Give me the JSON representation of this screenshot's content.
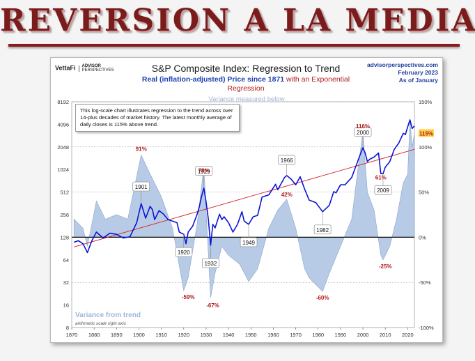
{
  "banner": {
    "title": "REVERSION A LA MEDIA"
  },
  "brand": {
    "vettafi": "VettaFi",
    "advisor": "ADVISOR",
    "perspectives": "PERSPECTIVES"
  },
  "header": {
    "title": "S&P Composite Index: Regression to Trend",
    "subtitle_blue": "Real (inflation-adjusted) Price since 1871",
    "subtitle_red": "with an Exponential Regression",
    "variance_note": "Variance measured below"
  },
  "source": {
    "site": "advisorperspectives.com",
    "date": "February 2023",
    "basis": "As of January"
  },
  "explain_box": "This log-scale chart illustrates regression to the trend across over 14-plus decades of market history. The latest monthly average of daily closes is 115% above trend.",
  "variance_label": "Variance from trend",
  "variance_sub": "arithmetic scale right axis",
  "colors": {
    "price": "#0a14d6",
    "trend": "#d22020",
    "variance_fill": "#b8cbe6",
    "variance_stroke": "#8aa3c8",
    "callout_red": "#b31a1a"
  },
  "chart_data": {
    "type": "line",
    "x_axis": {
      "range": [
        1870,
        2023
      ],
      "ticks": [
        1870,
        1880,
        1890,
        1900,
        1910,
        1920,
        1930,
        1940,
        1950,
        1960,
        1970,
        1980,
        1990,
        2000,
        2010,
        2020
      ]
    },
    "y_axis_left": {
      "scale": "log2",
      "range": [
        8,
        8192
      ],
      "ticks": [
        8,
        16,
        32,
        64,
        128,
        256,
        512,
        1024,
        2048,
        4096,
        8192
      ]
    },
    "y_axis_right": {
      "scale": "linear",
      "range": [
        -100,
        150
      ],
      "ticks": [
        "150%",
        "100%",
        "50%",
        "0%",
        "-50%",
        "-100%"
      ]
    },
    "trend": {
      "name": "Exponential Regression",
      "points": [
        [
          1871,
          95
        ],
        [
          2023,
          1900
        ]
      ]
    },
    "series": [
      {
        "name": "Real S&P Composite",
        "x": [
          1871,
          1873,
          1875,
          1877,
          1879,
          1881,
          1884,
          1887,
          1890,
          1893,
          1896,
          1899,
          1901,
          1903,
          1905,
          1906,
          1907,
          1909,
          1911,
          1913,
          1915,
          1917,
          1918,
          1920,
          1921,
          1922,
          1924,
          1926,
          1927,
          1928,
          1929,
          1930,
          1931,
          1932,
          1933,
          1934,
          1935,
          1936,
          1937,
          1938,
          1940,
          1942,
          1944,
          1946,
          1947,
          1949,
          1951,
          1953,
          1955,
          1958,
          1961,
          1962,
          1965,
          1966,
          1968,
          1970,
          1972,
          1974,
          1976,
          1979,
          1982,
          1985,
          1987,
          1988,
          1990,
          1992,
          1995,
          1998,
          2000,
          2001,
          2002,
          2003,
          2005,
          2007,
          2008,
          2009,
          2010,
          2012,
          2014,
          2016,
          2018,
          2019,
          2020,
          2021,
          2022,
          2023
        ],
        "values": [
          110,
          115,
          105,
          80,
          115,
          150,
          125,
          145,
          140,
          125,
          130,
          200,
          360,
          230,
          330,
          300,
          220,
          290,
          260,
          220,
          210,
          200,
          150,
          140,
          105,
          150,
          180,
          260,
          330,
          450,
          580,
          380,
          220,
          100,
          190,
          170,
          210,
          260,
          220,
          240,
          200,
          150,
          190,
          280,
          210,
          190,
          240,
          250,
          440,
          470,
          650,
          550,
          800,
          850,
          760,
          640,
          820,
          560,
          400,
          370,
          280,
          340,
          520,
          500,
          640,
          640,
          800,
          1400,
          2000,
          1700,
          1300,
          1400,
          1500,
          1700,
          900,
          900,
          1100,
          1300,
          1900,
          2300,
          3100,
          3000,
          3800,
          4700,
          3600,
          3900
        ]
      },
      {
        "name": "Variance from trend",
        "x": [
          1871,
          1875,
          1877,
          1881,
          1885,
          1890,
          1895,
          1901,
          1905,
          1910,
          1915,
          1920,
          1922,
          1926,
          1929,
          1930,
          1932,
          1934,
          1937,
          1940,
          1945,
          1949,
          1953,
          1958,
          1962,
          1966,
          1970,
          1974,
          1976,
          1978,
          1982,
          1985,
          1990,
          1995,
          1998,
          2000,
          2002,
          2005,
          2008,
          2009,
          2012,
          2015,
          2018,
          2020,
          2021,
          2022,
          2023
        ],
        "values": [
          20,
          10,
          -10,
          40,
          20,
          25,
          20,
          91,
          70,
          45,
          10,
          -59,
          -45,
          15,
          78,
          30,
          -67,
          -40,
          -10,
          -20,
          -30,
          -49,
          -35,
          10,
          30,
          42,
          10,
          -35,
          -45,
          -50,
          -60,
          -40,
          -10,
          20,
          80,
          116,
          50,
          30,
          -20,
          -25,
          -10,
          20,
          60,
          70,
          130,
          100,
          115
        ]
      }
    ],
    "callouts": [
      {
        "label": "1901"
      },
      {
        "label": "1920"
      },
      {
        "label": "1929"
      },
      {
        "label": "1932"
      },
      {
        "label": "1949"
      },
      {
        "label": "1966"
      },
      {
        "label": "1982"
      },
      {
        "label": "2000"
      },
      {
        "label": "2009"
      }
    ],
    "variance_labels": [
      {
        "label": "91%"
      },
      {
        "label": "-59%"
      },
      {
        "label": "78%"
      },
      {
        "label": "-67%"
      },
      {
        "label": "42%"
      },
      {
        "label": "-60%"
      },
      {
        "label": "116%"
      },
      {
        "label": "61%"
      },
      {
        "label": "-25%"
      },
      {
        "label": "115%"
      }
    ]
  }
}
